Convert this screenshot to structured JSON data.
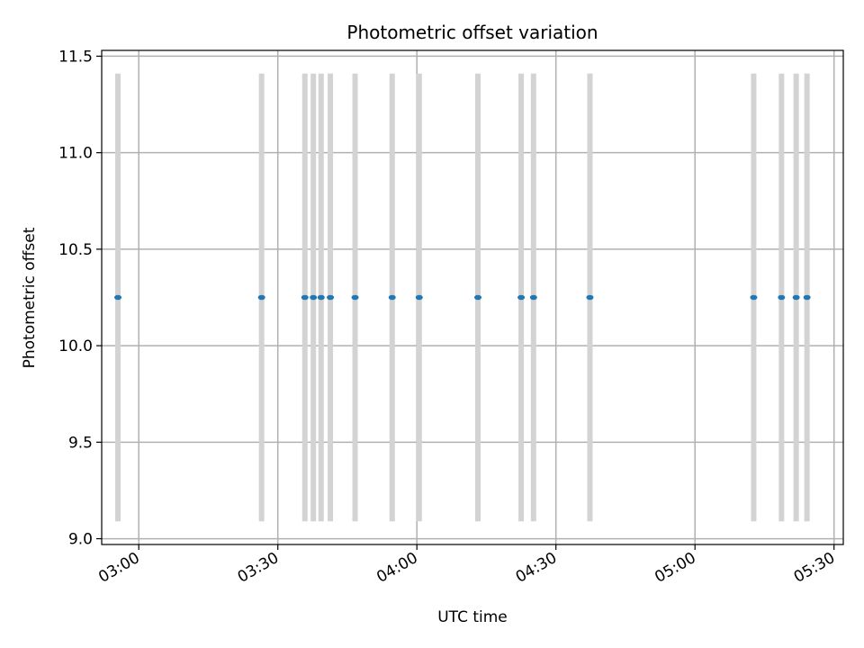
{
  "chart_data": {
    "type": "scatter",
    "title": "Photometric offset variation",
    "xlabel": "UTC time",
    "ylabel": "Photometric offset",
    "x_axis_kind": "time",
    "xlim": [
      "02:52",
      "05:32"
    ],
    "ylim": [
      8.97,
      11.53
    ],
    "yticks": [
      9.0,
      9.5,
      10.0,
      10.5,
      11.0,
      11.5
    ],
    "ytick_labels": [
      "9.0",
      "9.5",
      "10.0",
      "10.5",
      "11.0",
      "11.5"
    ],
    "xticks": [
      "03:00",
      "03:30",
      "04:00",
      "04:30",
      "05:00",
      "05:30"
    ],
    "grid": true,
    "band_range": [
      9.09,
      11.41
    ],
    "colors": {
      "point": "#1f77b4",
      "band": "#d3d3d3",
      "grid": "#b0b0b0"
    },
    "points": [
      {
        "x": "02:55:30",
        "y": 10.25
      },
      {
        "x": "03:26:30",
        "y": 10.25
      },
      {
        "x": "03:35:50",
        "y": 10.25
      },
      {
        "x": "03:37:40",
        "y": 10.25
      },
      {
        "x": "03:39:20",
        "y": 10.25
      },
      {
        "x": "03:41:20",
        "y": 10.25
      },
      {
        "x": "03:46:40",
        "y": 10.25
      },
      {
        "x": "03:54:40",
        "y": 10.25
      },
      {
        "x": "04:00:30",
        "y": 10.25
      },
      {
        "x": "04:13:10",
        "y": 10.25
      },
      {
        "x": "04:22:30",
        "y": 10.25
      },
      {
        "x": "04:25:10",
        "y": 10.25
      },
      {
        "x": "04:37:20",
        "y": 10.25
      },
      {
        "x": "05:12:40",
        "y": 10.25
      },
      {
        "x": "05:18:40",
        "y": 10.25
      },
      {
        "x": "05:21:50",
        "y": 10.25
      },
      {
        "x": "05:24:10",
        "y": 10.25
      }
    ]
  }
}
